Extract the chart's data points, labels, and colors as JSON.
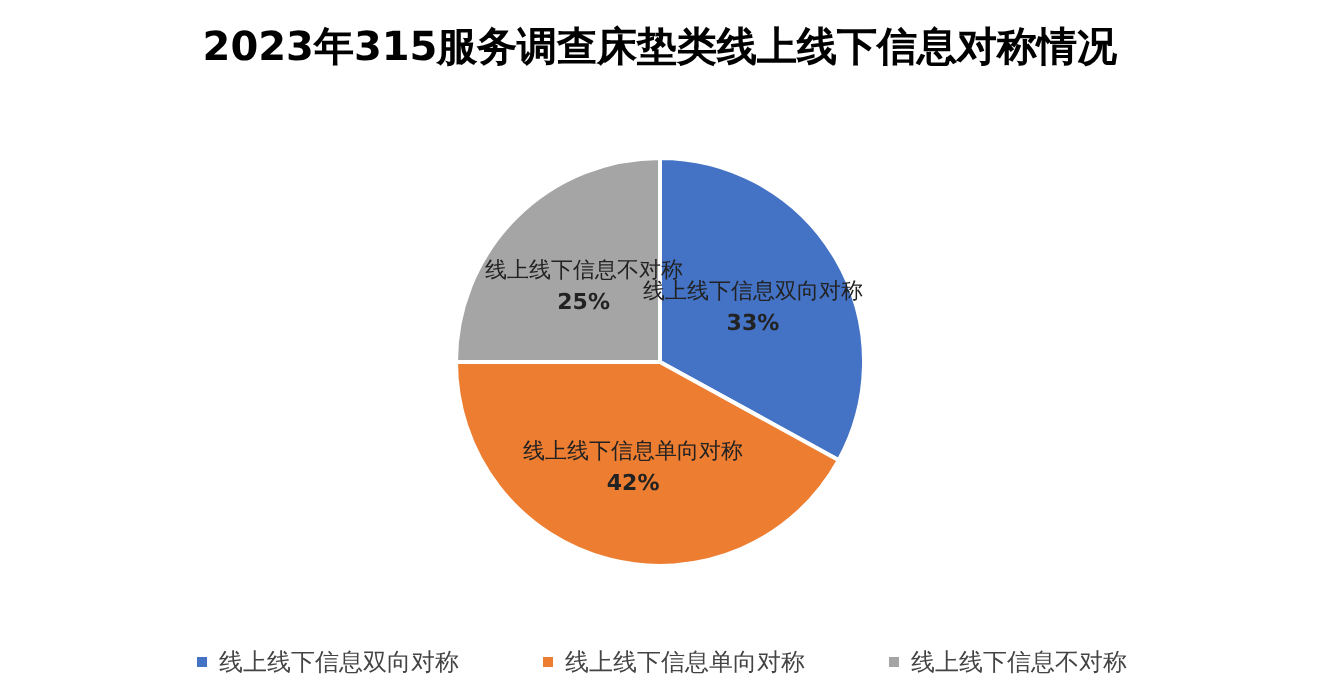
{
  "chart_data": {
    "type": "pie",
    "title": "2023年315服务调查床垫类线上线下信息对称情况",
    "categories": [
      "线上线下信息双向对称",
      "线上线下信息单向对称",
      "线上线下信息不对称"
    ],
    "values": [
      33,
      42,
      25
    ],
    "colors": [
      "#4472c4",
      "#ed7d31",
      "#a5a5a5"
    ],
    "value_labels": [
      "33%",
      "42%",
      "25%"
    ],
    "legend": "bottom"
  }
}
